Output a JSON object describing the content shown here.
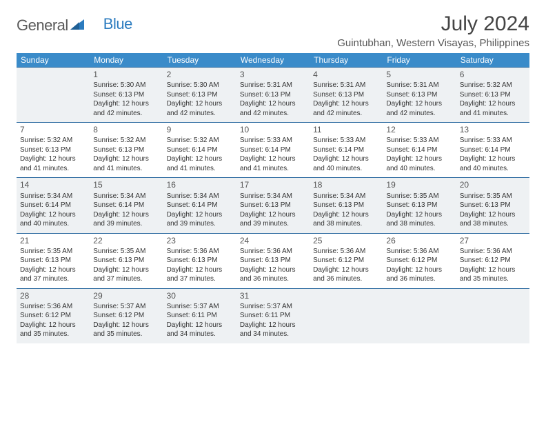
{
  "logo": {
    "word1": "General",
    "word2": "Blue"
  },
  "title": "July 2024",
  "location": "Guintubhan, Western Visayas, Philippines",
  "colors": {
    "header_bg": "#3a8bc9",
    "header_text": "#ffffff",
    "row_border": "#2b6aa0",
    "shade_bg": "#eef1f3",
    "logo_gray": "#5a5a5a",
    "logo_blue": "#2b7bbf"
  },
  "day_headers": [
    "Sunday",
    "Monday",
    "Tuesday",
    "Wednesday",
    "Thursday",
    "Friday",
    "Saturday"
  ],
  "weeks": [
    {
      "shade": true,
      "days": [
        null,
        {
          "n": "1",
          "sr": "5:30 AM",
          "ss": "6:13 PM",
          "dl": "12 hours and 42 minutes."
        },
        {
          "n": "2",
          "sr": "5:30 AM",
          "ss": "6:13 PM",
          "dl": "12 hours and 42 minutes."
        },
        {
          "n": "3",
          "sr": "5:31 AM",
          "ss": "6:13 PM",
          "dl": "12 hours and 42 minutes."
        },
        {
          "n": "4",
          "sr": "5:31 AM",
          "ss": "6:13 PM",
          "dl": "12 hours and 42 minutes."
        },
        {
          "n": "5",
          "sr": "5:31 AM",
          "ss": "6:13 PM",
          "dl": "12 hours and 42 minutes."
        },
        {
          "n": "6",
          "sr": "5:32 AM",
          "ss": "6:13 PM",
          "dl": "12 hours and 41 minutes."
        }
      ]
    },
    {
      "shade": false,
      "days": [
        {
          "n": "7",
          "sr": "5:32 AM",
          "ss": "6:13 PM",
          "dl": "12 hours and 41 minutes."
        },
        {
          "n": "8",
          "sr": "5:32 AM",
          "ss": "6:13 PM",
          "dl": "12 hours and 41 minutes."
        },
        {
          "n": "9",
          "sr": "5:32 AM",
          "ss": "6:14 PM",
          "dl": "12 hours and 41 minutes."
        },
        {
          "n": "10",
          "sr": "5:33 AM",
          "ss": "6:14 PM",
          "dl": "12 hours and 41 minutes."
        },
        {
          "n": "11",
          "sr": "5:33 AM",
          "ss": "6:14 PM",
          "dl": "12 hours and 40 minutes."
        },
        {
          "n": "12",
          "sr": "5:33 AM",
          "ss": "6:14 PM",
          "dl": "12 hours and 40 minutes."
        },
        {
          "n": "13",
          "sr": "5:33 AM",
          "ss": "6:14 PM",
          "dl": "12 hours and 40 minutes."
        }
      ]
    },
    {
      "shade": true,
      "days": [
        {
          "n": "14",
          "sr": "5:34 AM",
          "ss": "6:14 PM",
          "dl": "12 hours and 40 minutes."
        },
        {
          "n": "15",
          "sr": "5:34 AM",
          "ss": "6:14 PM",
          "dl": "12 hours and 39 minutes."
        },
        {
          "n": "16",
          "sr": "5:34 AM",
          "ss": "6:14 PM",
          "dl": "12 hours and 39 minutes."
        },
        {
          "n": "17",
          "sr": "5:34 AM",
          "ss": "6:13 PM",
          "dl": "12 hours and 39 minutes."
        },
        {
          "n": "18",
          "sr": "5:34 AM",
          "ss": "6:13 PM",
          "dl": "12 hours and 38 minutes."
        },
        {
          "n": "19",
          "sr": "5:35 AM",
          "ss": "6:13 PM",
          "dl": "12 hours and 38 minutes."
        },
        {
          "n": "20",
          "sr": "5:35 AM",
          "ss": "6:13 PM",
          "dl": "12 hours and 38 minutes."
        }
      ]
    },
    {
      "shade": false,
      "days": [
        {
          "n": "21",
          "sr": "5:35 AM",
          "ss": "6:13 PM",
          "dl": "12 hours and 37 minutes."
        },
        {
          "n": "22",
          "sr": "5:35 AM",
          "ss": "6:13 PM",
          "dl": "12 hours and 37 minutes."
        },
        {
          "n": "23",
          "sr": "5:36 AM",
          "ss": "6:13 PM",
          "dl": "12 hours and 37 minutes."
        },
        {
          "n": "24",
          "sr": "5:36 AM",
          "ss": "6:13 PM",
          "dl": "12 hours and 36 minutes."
        },
        {
          "n": "25",
          "sr": "5:36 AM",
          "ss": "6:12 PM",
          "dl": "12 hours and 36 minutes."
        },
        {
          "n": "26",
          "sr": "5:36 AM",
          "ss": "6:12 PM",
          "dl": "12 hours and 36 minutes."
        },
        {
          "n": "27",
          "sr": "5:36 AM",
          "ss": "6:12 PM",
          "dl": "12 hours and 35 minutes."
        }
      ]
    },
    {
      "shade": true,
      "days": [
        {
          "n": "28",
          "sr": "5:36 AM",
          "ss": "6:12 PM",
          "dl": "12 hours and 35 minutes."
        },
        {
          "n": "29",
          "sr": "5:37 AM",
          "ss": "6:12 PM",
          "dl": "12 hours and 35 minutes."
        },
        {
          "n": "30",
          "sr": "5:37 AM",
          "ss": "6:11 PM",
          "dl": "12 hours and 34 minutes."
        },
        {
          "n": "31",
          "sr": "5:37 AM",
          "ss": "6:11 PM",
          "dl": "12 hours and 34 minutes."
        },
        null,
        null,
        null
      ]
    }
  ],
  "labels": {
    "sunrise": "Sunrise:",
    "sunset": "Sunset:",
    "daylight": "Daylight:"
  }
}
